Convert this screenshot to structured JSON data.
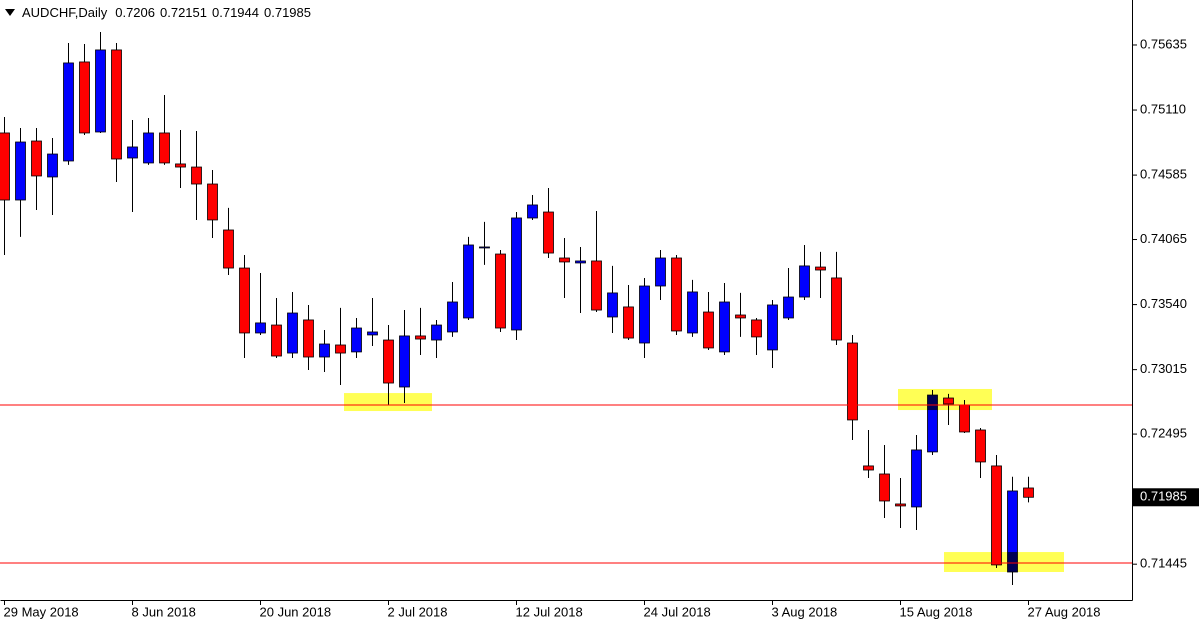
{
  "chart_data": {
    "type": "candlestick",
    "title": "AUDCHF,Daily",
    "categories": [
      "29 May 2018",
      null,
      null,
      null,
      null,
      null,
      null,
      null,
      "8 Jun 2018",
      null,
      null,
      null,
      null,
      null,
      null,
      null,
      "20 Jun 2018",
      null,
      null,
      null,
      null,
      null,
      null,
      null,
      "2 Jul 2018",
      null,
      null,
      null,
      null,
      null,
      null,
      null,
      "12 Jul 2018",
      null,
      null,
      null,
      null,
      null,
      null,
      null,
      "24 Jul 2018",
      null,
      null,
      null,
      null,
      null,
      null,
      null,
      "3 Aug 2018",
      null,
      null,
      null,
      null,
      null,
      null,
      null,
      "15 Aug 2018",
      null,
      null,
      null,
      null,
      null,
      null,
      null,
      "27 Aug 2018"
    ],
    "open": [
      0.74925,
      0.74384,
      0.7486,
      0.7457,
      0.74699,
      0.75498,
      0.74933,
      0.75595,
      0.74723,
      0.74683,
      0.74925,
      0.74675,
      0.7465,
      0.74513,
      0.74142,
      0.73835,
      0.73311,
      0.73375,
      0.73149,
      0.73416,
      0.73117,
      0.73214,
      0.73158,
      0.73295,
      0.73254,
      0.72875,
      0.73287,
      0.73254,
      0.73319,
      0.73432,
      0.73997,
      0.73948,
      0.73335,
      0.74239,
      0.74287,
      0.73916,
      0.73876,
      0.73892,
      0.7344,
      0.73521,
      0.7323,
      0.7369,
      0.73916,
      0.73311,
      0.7348,
      0.73158,
      0.73456,
      0.73416,
      0.73174,
      0.73432,
      0.73601,
      0.73843,
      0.73755,
      0.7323,
      0.72238,
      0.72173,
      0.71931,
      0.71907,
      0.72351,
      0.72786,
      0.7273,
      0.72528,
      0.72238,
      0.71382,
      0.7206
    ],
    "high": [
      0.75054,
      0.74965,
      0.74965,
      0.74884,
      0.75651,
      0.75643,
      0.7574,
      0.75651,
      0.7503,
      0.75046,
      0.75231,
      0.74949,
      0.74941,
      0.74626,
      0.7432,
      0.7394,
      0.73795,
      0.73593,
      0.73642,
      0.73537,
      0.73335,
      0.73513,
      0.73432,
      0.73593,
      0.73375,
      0.73496,
      0.73513,
      0.73416,
      0.73722,
      0.74086,
      0.74207,
      0.73981,
      0.74287,
      0.74424,
      0.74481,
      0.74077,
      0.74005,
      0.74295,
      0.73852,
      0.73698,
      0.73755,
      0.73981,
      0.7394,
      0.73739,
      0.73642,
      0.73714,
      0.73634,
      0.73432,
      0.73577,
      0.73835,
      0.74021,
      0.73965,
      0.73965,
      0.73295,
      0.72528,
      0.72407,
      0.72141,
      0.72488,
      0.72851,
      0.72819,
      0.7277,
      0.72544,
      0.72326,
      0.72151,
      0.72151
    ],
    "low": [
      0.7394,
      0.74086,
      0.74303,
      0.74263,
      0.74667,
      0.74909,
      0.74925,
      0.74529,
      0.74287,
      0.74667,
      0.74667,
      0.74481,
      0.74223,
      0.74077,
      0.73779,
      0.73109,
      0.73295,
      0.73109,
      0.73109,
      0.73012,
      0.72996,
      0.72891,
      0.73109,
      0.73206,
      0.7273,
      0.72746,
      0.73133,
      0.73109,
      0.73279,
      0.73416,
      0.7386,
      0.73319,
      0.73254,
      0.74223,
      0.73916,
      0.73593,
      0.73472,
      0.7348,
      0.73311,
      0.73254,
      0.73109,
      0.73577,
      0.73295,
      0.73279,
      0.73174,
      0.73133,
      0.73279,
      0.73133,
      0.73028,
      0.73416,
      0.73577,
      0.73593,
      0.73214,
      0.72447,
      0.72141,
      0.71818,
      0.71737,
      0.71721,
      0.72326,
      0.72568,
      0.72504,
      0.72141,
      0.71414,
      0.71277,
      0.71944
    ],
    "close": [
      0.74384,
      0.74852,
      0.74578,
      0.74755,
      0.7549,
      0.74925,
      0.75595,
      0.74715,
      0.74812,
      0.74925,
      0.74683,
      0.7465,
      0.74513,
      0.74223,
      0.73835,
      0.73311,
      0.73392,
      0.73125,
      0.73472,
      0.73117,
      0.73222,
      0.73149,
      0.73351,
      0.73319,
      0.72907,
      0.73287,
      0.73262,
      0.73375,
      0.73561,
      0.74021,
      0.74005,
      0.73351,
      0.74239,
      0.74344,
      0.73956,
      0.73884,
      0.73892,
      0.73496,
      0.73634,
      0.7327,
      0.7369,
      0.73916,
      0.73327,
      0.73642,
      0.7319,
      0.73561,
      0.73432,
      0.73279,
      0.73537,
      0.73601,
      0.73852,
      0.73819,
      0.73254,
      0.72609,
      0.72205,
      0.71955,
      0.71915,
      0.72367,
      0.7281,
      0.72738,
      0.72512,
      0.7227,
      0.71439,
      0.72036,
      0.71985
    ],
    "up_color": "#0000ff",
    "down_color": "#ff0000",
    "ylim": [
      0.71156,
      0.75998
    ],
    "yticks": [
      0.75635,
      {
        "value": 0.7511,
        "label": "0.75110"
      },
      0.74585,
      0.74065,
      {
        "value": 0.7354,
        "label": "0.73540"
      },
      0.73015,
      0.72495,
      0.71445
    ],
    "hlines": [
      0.7273,
      0.71455
    ],
    "hline_color": "#ff0000",
    "zones": [
      [
        0.72681,
        0.72826
      ],
      [
        0.72689,
        0.72859
      ],
      [
        0.71382,
        0.71543
      ]
    ],
    "zone_color": "#ffff55"
  }
}
